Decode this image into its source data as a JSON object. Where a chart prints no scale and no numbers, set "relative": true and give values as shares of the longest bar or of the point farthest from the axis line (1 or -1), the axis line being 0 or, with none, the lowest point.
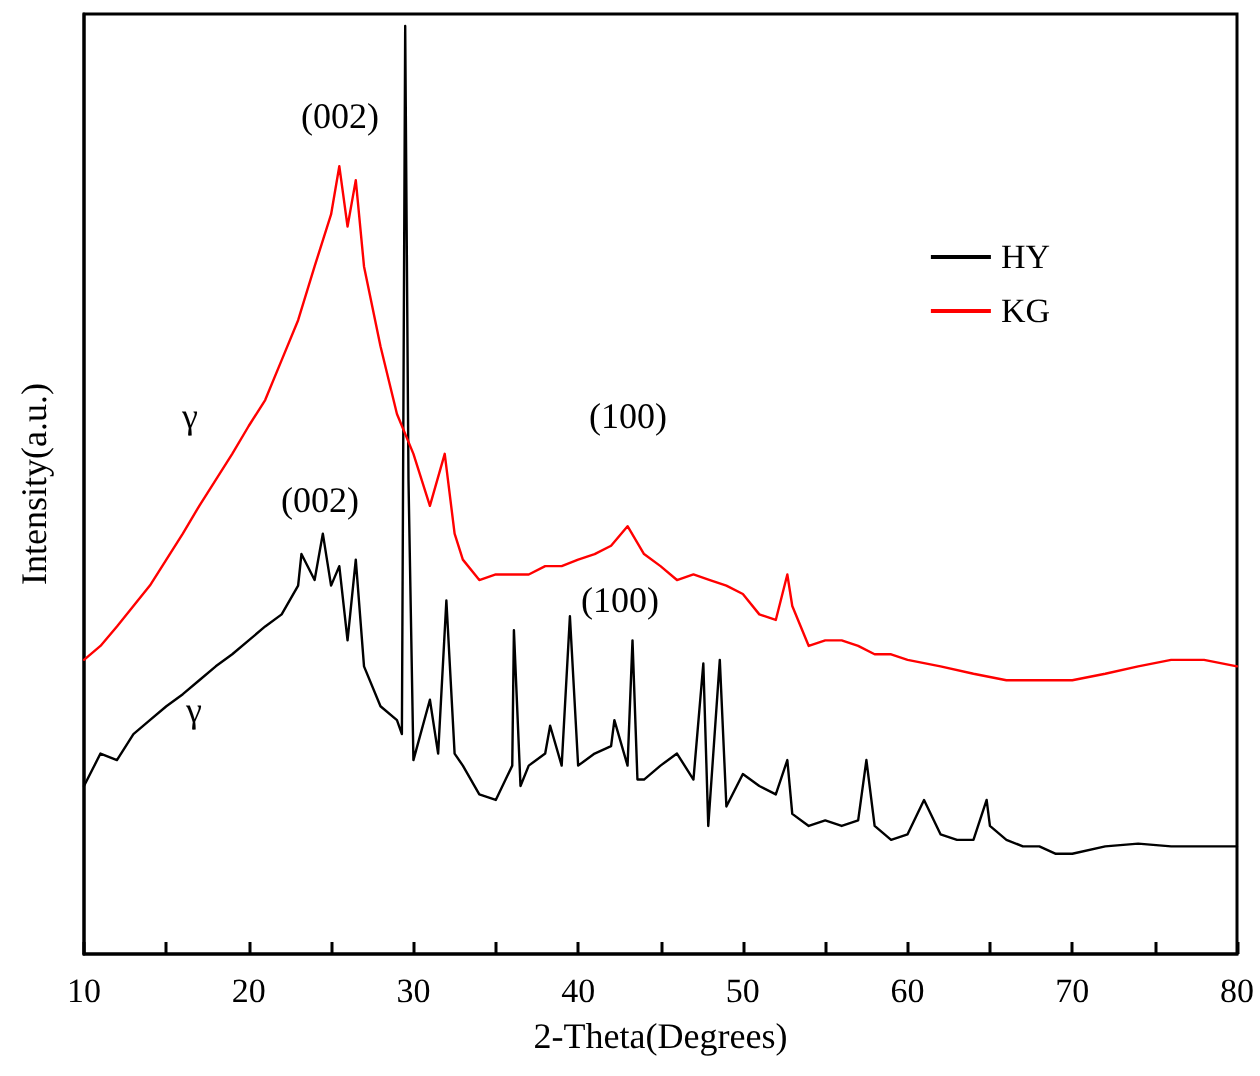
{
  "chart_data": {
    "type": "line",
    "relative": true,
    "xlabel": "2-Theta(Degrees)",
    "ylabel": "Intensity(a.u.)",
    "xlim": [
      10,
      80
    ],
    "xticks": [
      10,
      {
        "value": 15,
        "label": null
      },
      20,
      {
        "value": 25,
        "label": null
      },
      30,
      {
        "value": 35,
        "label": null
      },
      40,
      {
        "value": 45,
        "label": null
      },
      50,
      {
        "value": 55,
        "label": null
      },
      60,
      {
        "value": 65,
        "label": null
      },
      70,
      {
        "value": 75,
        "label": null
      },
      80
    ],
    "legend": "top right",
    "grid": false,
    "marker": "none",
    "line_style": "solid",
    "series": [
      {
        "name": "HY",
        "color": "#000000",
        "x": [
          10,
          11,
          12,
          13,
          14,
          15,
          16,
          17,
          18,
          19,
          20,
          21,
          22,
          23,
          23.2,
          24,
          24.5,
          25,
          25.5,
          26,
          26.5,
          27,
          28,
          29,
          29.3,
          29.5,
          29.7,
          30,
          31,
          31.5,
          32,
          32.5,
          33,
          34,
          35,
          36,
          36.1,
          36.5,
          37,
          38,
          38.3,
          39,
          39.5,
          40,
          41,
          42,
          42.2,
          43,
          43.3,
          43.6,
          44,
          45,
          46,
          47,
          47.6,
          47.9,
          48.6,
          49,
          50,
          51,
          52,
          52.7,
          53,
          54,
          55,
          56,
          57,
          57.5,
          58,
          59,
          60,
          61,
          62,
          63,
          64,
          64.8,
          65,
          66,
          67,
          68,
          69,
          70,
          72,
          74,
          76,
          78,
          80
        ],
        "values": [
          0.181,
          0.216,
          0.209,
          0.237,
          0.252,
          0.267,
          0.28,
          0.295,
          0.31,
          0.323,
          0.338,
          0.353,
          0.366,
          0.397,
          0.431,
          0.403,
          0.453,
          0.397,
          0.418,
          0.338,
          0.425,
          0.31,
          0.267,
          0.252,
          0.237,
          1,
          0.511,
          0.209,
          0.274,
          0.216,
          0.381,
          0.216,
          0.203,
          0.172,
          0.166,
          0.203,
          0.349,
          0.181,
          0.203,
          0.216,
          0.246,
          0.203,
          0.364,
          0.203,
          0.216,
          0.224,
          0.252,
          0.203,
          0.338,
          0.188,
          0.188,
          0.203,
          0.216,
          0.188,
          0.313,
          0.138,
          0.317,
          0.159,
          0.194,
          0.181,
          0.172,
          0.209,
          0.151,
          0.138,
          0.144,
          0.138,
          0.144,
          0.209,
          0.138,
          0.123,
          0.129,
          0.166,
          0.129,
          0.123,
          0.123,
          0.166,
          0.138,
          0.123,
          0.116,
          0.116,
          0.108,
          0.108,
          0.116,
          0.119,
          0.116,
          0.116,
          0.116
        ]
      },
      {
        "name": "KG",
        "color": "#ff0000",
        "x": [
          10,
          11,
          12,
          13,
          14,
          15,
          16,
          17,
          18,
          19,
          20,
          21,
          22,
          23,
          24,
          25,
          25.5,
          26,
          26.5,
          27,
          28,
          29,
          30,
          31,
          31.9,
          32.5,
          33,
          34,
          35,
          36,
          37,
          38,
          39,
          40,
          41,
          42,
          43,
          44,
          45,
          46,
          47,
          48,
          49,
          50,
          51,
          52,
          52.7,
          53,
          54,
          55,
          56,
          57,
          58,
          59,
          60,
          62,
          64,
          66,
          68,
          70,
          72,
          74,
          76,
          78,
          80
        ],
        "values": [
          0.317,
          0.332,
          0.353,
          0.375,
          0.397,
          0.425,
          0.453,
          0.483,
          0.511,
          0.539,
          0.569,
          0.597,
          0.64,
          0.683,
          0.741,
          0.797,
          0.849,
          0.784,
          0.834,
          0.741,
          0.655,
          0.582,
          0.539,
          0.483,
          0.539,
          0.453,
          0.425,
          0.403,
          0.409,
          0.409,
          0.409,
          0.418,
          0.418,
          0.425,
          0.431,
          0.44,
          0.461,
          0.431,
          0.418,
          0.403,
          0.409,
          0.403,
          0.397,
          0.388,
          0.366,
          0.36,
          0.409,
          0.375,
          0.332,
          0.338,
          0.338,
          0.332,
          0.323,
          0.323,
          0.317,
          0.31,
          0.302,
          0.295,
          0.295,
          0.295,
          0.302,
          0.31,
          0.317,
          0.317,
          0.31
        ]
      }
    ],
    "annotations": [
      "(002)",
      "γ",
      "(100)",
      "(002)",
      "γ",
      "(100)"
    ]
  }
}
